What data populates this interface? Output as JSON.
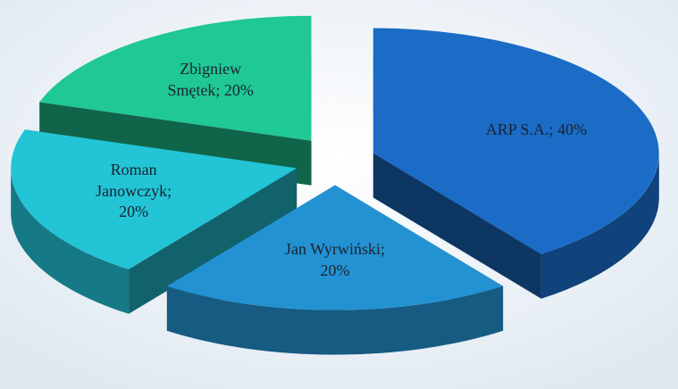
{
  "chart_data": {
    "type": "pie3d",
    "values": [
      40,
      20,
      20,
      20
    ],
    "value_labels": [
      "ARP S.A.; 40%",
      "Jan Wyrwiński; 20%",
      "Roman Janowczyk; 20%",
      "Zbigniew Smętek; 20%"
    ],
    "colors": [
      "#1a6cc6",
      "#2392d2",
      "#22c4d6",
      "#1fc894"
    ]
  }
}
